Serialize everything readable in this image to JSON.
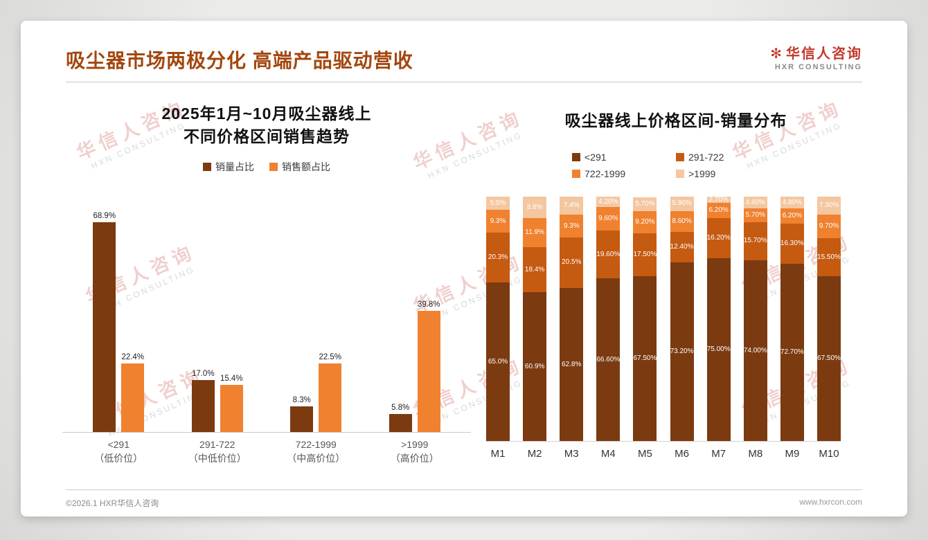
{
  "page": {
    "title": "吸尘器市场两极分化 高端产品驱动营收",
    "logo": {
      "mark": "✻",
      "cn": "华信人咨询",
      "en": "HXR CONSULTING"
    },
    "watermark": {
      "cn": "华信人咨询",
      "en": "HXN CONSULTING"
    },
    "footer": {
      "left": "©2026.1 HXR华信人咨询",
      "right": "www.hxrcon.com"
    }
  },
  "colors": {
    "title": "#a3470e",
    "series_dark": "#7b3a10",
    "series_mid": "#c55a11",
    "series_orange": "#f0812f",
    "series_light": "#f4c7a1"
  },
  "chart_data": [
    {
      "type": "bar",
      "stacked": false,
      "title_line1": "2025年1月~10月吸尘器线上",
      "title_line2": "不同价格区间销售趋势",
      "xlabel": "",
      "ylabel": "",
      "ylim": [
        0,
        75
      ],
      "grid": false,
      "legend_position": "top",
      "categories": [
        "<291",
        "291-722",
        "722-1999",
        ">1999"
      ],
      "category_sub": [
        "（低价位）",
        "（中低价位）",
        "（中高价位）",
        "（高价位）"
      ],
      "series": [
        {
          "name": "销量占比",
          "color": "#7b3a10",
          "values": [
            68.9,
            17.0,
            8.3,
            5.8
          ],
          "labels": [
            "68.9%",
            "17.0%",
            "8.3%",
            "5.8%"
          ]
        },
        {
          "name": "销售额占比",
          "color": "#f0812f",
          "values": [
            22.4,
            15.4,
            22.5,
            39.8
          ],
          "labels": [
            "22.4%",
            "15.4%",
            "22.5%",
            "39.8%"
          ]
        }
      ]
    },
    {
      "type": "bar",
      "stacked": true,
      "title": "吸尘器线上价格区间-销量分布",
      "xlabel": "",
      "ylabel": "",
      "ylim": [
        0,
        100
      ],
      "grid": false,
      "legend_position": "top",
      "categories": [
        "M1",
        "M2",
        "M3",
        "M4",
        "M5",
        "M6",
        "M7",
        "M8",
        "M9",
        "M10"
      ],
      "series": [
        {
          "name": "<291",
          "color": "#7b3a10",
          "values": [
            65.0,
            60.9,
            62.8,
            66.6,
            67.5,
            73.2,
            75.0,
            74.0,
            72.7,
            67.5
          ],
          "labels": [
            "65.0%",
            "60.9%",
            "62.8%",
            "66.60%",
            "67.50%",
            "73.20%",
            "75.00%",
            "74.00%",
            "72.70%",
            "67.50%"
          ]
        },
        {
          "name": "291-722",
          "color": "#c55a11",
          "values": [
            20.3,
            18.4,
            20.5,
            19.6,
            17.5,
            12.4,
            16.2,
            15.7,
            16.3,
            15.5
          ],
          "labels": [
            "20.3%",
            "18.4%",
            "20.5%",
            "19.60%",
            "17.50%",
            "12.40%",
            "16.20%",
            "15.70%",
            "16.30%",
            "15.50%"
          ]
        },
        {
          "name": "722-1999",
          "color": "#f0812f",
          "values": [
            9.3,
            11.9,
            9.3,
            9.6,
            9.2,
            8.6,
            6.2,
            5.7,
            6.2,
            9.7
          ],
          "labels": [
            "9.3%",
            "11.9%",
            "9.3%",
            "9.60%",
            "9.20%",
            "8.60%",
            "6.20%",
            "5.70%",
            "6.20%",
            "9.70%"
          ]
        },
        {
          "name": ">1999",
          "color": "#f4c7a1",
          "values": [
            5.5,
            8.8,
            7.4,
            4.2,
            5.7,
            5.9,
            2.7,
            4.6,
            4.8,
            7.3
          ],
          "labels": [
            "5.5%",
            "8.8%",
            "7.4%",
            "4.20%",
            "5.70%",
            "5.90%",
            "2.70%",
            "4.60%",
            "4.80%",
            "7.30%"
          ]
        }
      ]
    }
  ]
}
